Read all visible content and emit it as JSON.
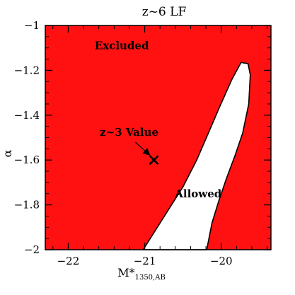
{
  "chart_data": {
    "type": "area",
    "title": "z~6 LF",
    "xlabel_main": "M*",
    "xlabel_sub": "1350,AB",
    "ylabel": "α",
    "xlim": [
      -22.3,
      -19.35
    ],
    "ylim": [
      -2.0,
      -1.0
    ],
    "x_ticks": [
      -22,
      -21,
      -20
    ],
    "x_tick_labels": [
      "−22",
      "−21",
      "−20"
    ],
    "y_ticks": [
      -1.0,
      -1.2,
      -1.4,
      -1.6,
      -1.8,
      -2.0
    ],
    "y_tick_labels": [
      "−1",
      "−1.2",
      "−1.4",
      "−1.6",
      "−1.8",
      "−2"
    ],
    "excluded_color": "#ff1111",
    "allowed_color": "#ffffff",
    "allowed_region_boundary": [
      [
        -21.02,
        -2.0
      ],
      [
        -20.78,
        -1.87
      ],
      [
        -20.5,
        -1.72
      ],
      [
        -20.32,
        -1.6
      ],
      [
        -20.18,
        -1.49
      ],
      [
        -20.03,
        -1.37
      ],
      [
        -19.86,
        -1.24
      ],
      [
        -19.74,
        -1.165
      ],
      [
        -19.65,
        -1.17
      ],
      [
        -19.62,
        -1.22
      ],
      [
        -19.64,
        -1.35
      ],
      [
        -19.72,
        -1.48
      ],
      [
        -19.82,
        -1.58
      ],
      [
        -19.93,
        -1.68
      ],
      [
        -20.03,
        -1.78
      ],
      [
        -20.12,
        -1.88
      ],
      [
        -20.19,
        -2.0
      ]
    ],
    "point": {
      "label": "z~3 Value",
      "x": -20.88,
      "y": -1.6,
      "marker": "x"
    },
    "region_labels": [
      {
        "text": "Excluded",
        "x": -21.3,
        "y": -1.09
      },
      {
        "text": "Allowed",
        "x": -20.3,
        "y": -1.75
      }
    ],
    "grid": false
  }
}
